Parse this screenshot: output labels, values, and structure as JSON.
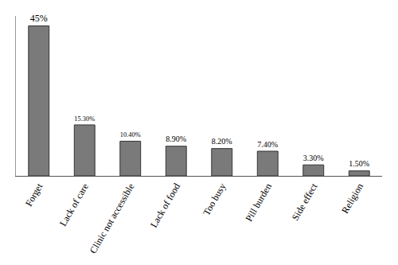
{
  "chart_data": {
    "type": "bar",
    "categories": [
      "Forget",
      "Lack of care",
      "Clinic not accessible",
      "Lack of food",
      "Too busy",
      "Pill burden",
      "Side effect",
      "Religion"
    ],
    "values": [
      45,
      15.3,
      10.4,
      8.9,
      8.2,
      7.4,
      3.3,
      1.5
    ],
    "value_labels": [
      "45%",
      "15.30%",
      "10.40%",
      "8.90%",
      "8.20%",
      "7.40%",
      "3.30%",
      "1.50%"
    ],
    "data_labels": true,
    "color": "#7a7a7a",
    "ylim": [
      0,
      48
    ],
    "grid": false,
    "tick_labels": "x"
  }
}
